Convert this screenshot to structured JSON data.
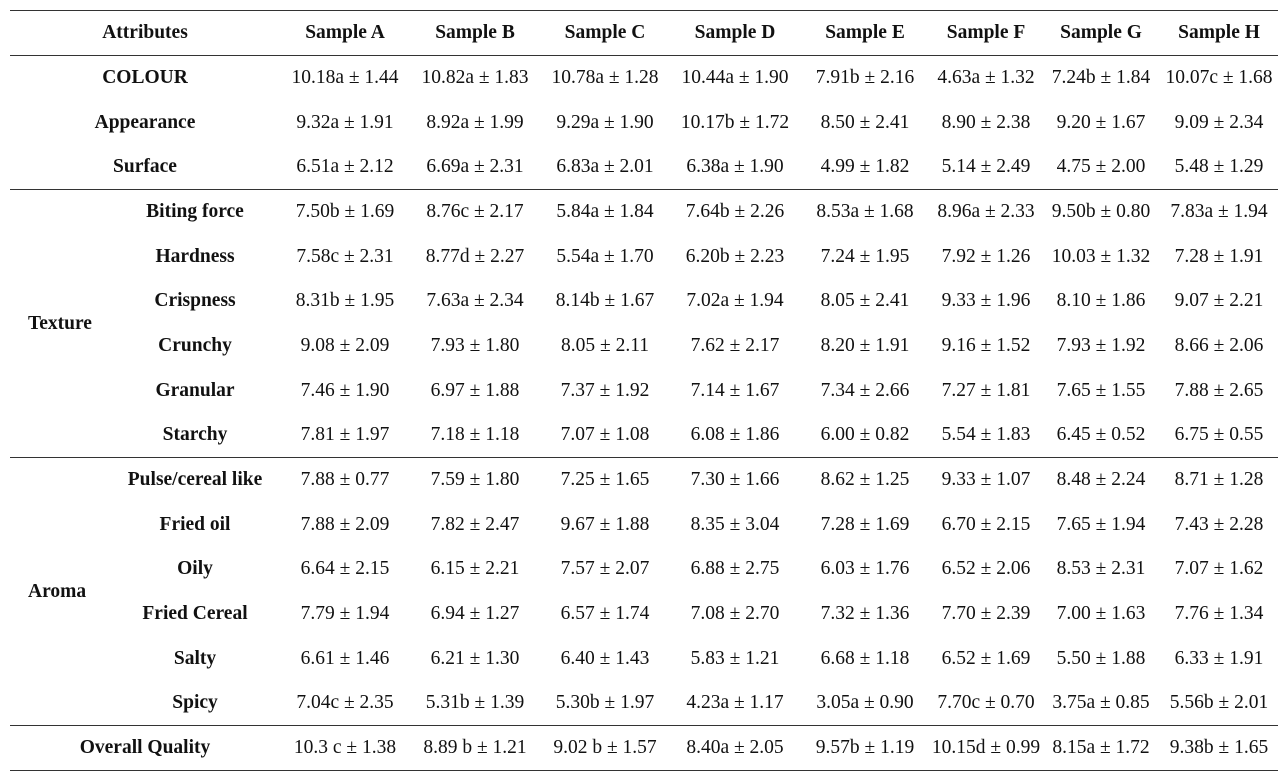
{
  "header": {
    "attributes": "Attributes",
    "samples": [
      "Sample A",
      "Sample B",
      "Sample C",
      "Sample D",
      "Sample E",
      "Sample F",
      "Sample G",
      "Sample H"
    ]
  },
  "groups": [
    {
      "label": "",
      "rows": [
        {
          "label": "COLOUR",
          "values": [
            "10.18a ± 1.44",
            "10.82a ± 1.83",
            "10.78a ± 1.28",
            "10.44a ± 1.90",
            "7.91b ± 2.16",
            "4.63a ± 1.32",
            "7.24b ± 1.84",
            "10.07c ± 1.68"
          ]
        },
        {
          "label": "Appearance",
          "values": [
            "9.32a ± 1.91",
            "8.92a ± 1.99",
            "9.29a ± 1.90",
            "10.17b ± 1.72",
            "8.50 ± 2.41",
            "8.90 ± 2.38",
            "9.20 ± 1.67",
            "9.09 ± 2.34"
          ]
        },
        {
          "label": "Surface",
          "values": [
            "6.51a ± 2.12",
            "6.69a ± 2.31",
            "6.83a ± 2.01",
            "6.38a ± 1.90",
            "4.99 ± 1.82",
            "5.14 ± 2.49",
            "4.75 ± 2.00",
            "5.48 ± 1.29"
          ]
        }
      ]
    },
    {
      "label": "Texture",
      "rows": [
        {
          "label": "Biting force",
          "values": [
            "7.50b ± 1.69",
            "8.76c ± 2.17",
            "5.84a ± 1.84",
            "7.64b ± 2.26",
            "8.53a ± 1.68",
            "8.96a ± 2.33",
            "9.50b ± 0.80",
            "7.83a ± 1.94"
          ]
        },
        {
          "label": "Hardness",
          "values": [
            "7.58c ± 2.31",
            "8.77d ± 2.27",
            "5.54a ± 1.70",
            "6.20b ± 2.23",
            "7.24 ± 1.95",
            "7.92 ± 1.26",
            "10.03 ± 1.32",
            "7.28 ± 1.91"
          ]
        },
        {
          "label": "Crispness",
          "values": [
            "8.31b ± 1.95",
            "7.63a ± 2.34",
            "8.14b ± 1.67",
            "7.02a ± 1.94",
            "8.05 ± 2.41",
            "9.33 ± 1.96",
            "8.10 ± 1.86",
            "9.07 ± 2.21"
          ]
        },
        {
          "label": "Crunchy",
          "values": [
            "9.08 ± 2.09",
            "7.93 ± 1.80",
            "8.05 ± 2.11",
            "7.62 ± 2.17",
            "8.20 ± 1.91",
            "9.16 ± 1.52",
            "7.93 ± 1.92",
            "8.66 ± 2.06"
          ]
        },
        {
          "label": "Granular",
          "values": [
            "7.46 ± 1.90",
            "6.97 ± 1.88",
            "7.37 ± 1.92",
            "7.14 ± 1.67",
            "7.34 ± 2.66",
            "7.27 ± 1.81",
            "7.65 ± 1.55",
            "7.88 ± 2.65"
          ]
        },
        {
          "label": "Starchy",
          "values": [
            "7.81 ± 1.97",
            "7.18 ± 1.18",
            "7.07 ± 1.08",
            "6.08 ± 1.86",
            "6.00 ± 0.82",
            "5.54 ± 1.83",
            "6.45 ± 0.52",
            "6.75 ± 0.55"
          ]
        }
      ]
    },
    {
      "label": "Aroma",
      "rows": [
        {
          "label": "Pulse/cereal like",
          "values": [
            "7.88 ± 0.77",
            "7.59 ± 1.80",
            "7.25 ± 1.65",
            "7.30 ± 1.66",
            "8.62 ± 1.25",
            "9.33 ± 1.07",
            "8.48 ± 2.24",
            "8.71 ± 1.28"
          ]
        },
        {
          "label": "Fried oil",
          "values": [
            "7.88 ± 2.09",
            "7.82 ± 2.47",
            "9.67 ± 1.88",
            "8.35 ± 3.04",
            "7.28 ± 1.69",
            "6.70 ± 2.15",
            "7.65 ± 1.94",
            "7.43 ± 2.28"
          ]
        },
        {
          "label": "Oily",
          "values": [
            "6.64 ± 2.15",
            "6.15 ± 2.21",
            "7.57 ± 2.07",
            "6.88 ± 2.75",
            "6.03 ± 1.76",
            "6.52 ± 2.06",
            "8.53 ± 2.31",
            "7.07 ± 1.62"
          ]
        },
        {
          "label": "Fried Cereal",
          "values": [
            "7.79 ± 1.94",
            "6.94 ± 1.27",
            "6.57 ± 1.74",
            "7.08 ± 2.70",
            "7.32 ± 1.36",
            "7.70 ± 2.39",
            "7.00 ± 1.63",
            "7.76 ± 1.34"
          ]
        },
        {
          "label": "Salty",
          "values": [
            "6.61 ± 1.46",
            "6.21 ± 1.30",
            "6.40 ± 1.43",
            "5.83 ± 1.21",
            "6.68 ± 1.18",
            "6.52 ± 1.69",
            "5.50 ± 1.88",
            "6.33 ± 1.91"
          ]
        },
        {
          "label": "Spicy",
          "values": [
            "7.04c ± 2.35",
            "5.31b ± 1.39",
            "5.30b ± 1.97",
            "4.23a ± 1.17",
            "3.05a ± 0.90",
            "7.70c ± 0.70",
            "3.75a ± 0.85",
            "5.56b ± 2.01"
          ]
        }
      ]
    },
    {
      "label": "",
      "rows": [
        {
          "label": "Overall Quality",
          "values": [
            "10.3 c   ± 1.38",
            "8.89 b   ± 1.21",
            "9.02 b ± 1.57",
            "8.40a ± 2.05",
            "9.57b ± 1.19",
            "10.15d ± 0.99",
            "8.15a ± 1.72",
            "9.38b ± 1.65"
          ]
        }
      ]
    }
  ]
}
